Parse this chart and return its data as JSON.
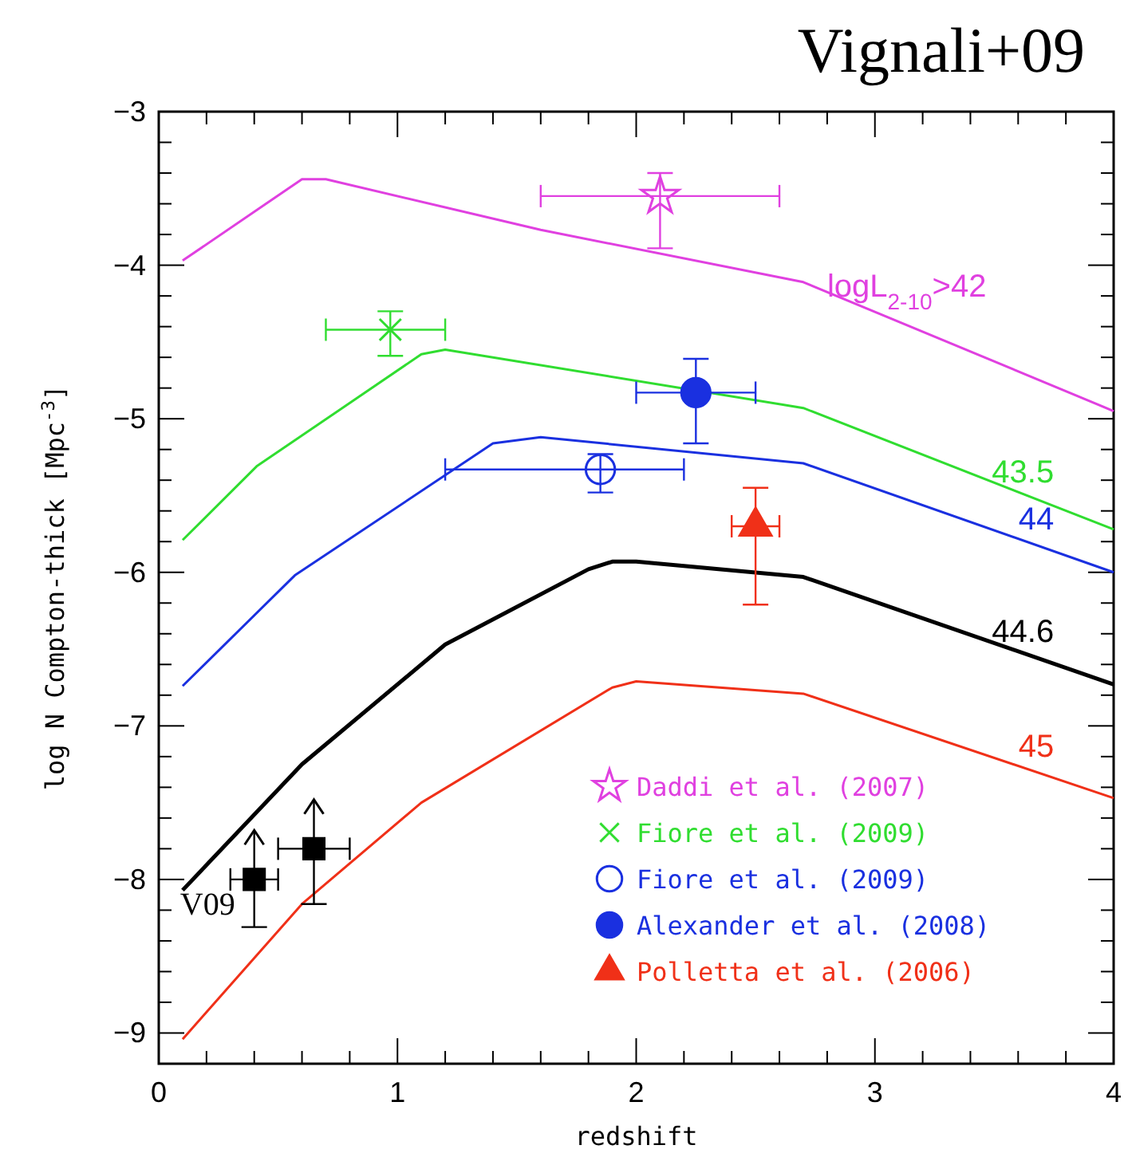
{
  "chart_data": {
    "type": "line",
    "title": "Vignali+09",
    "xlabel": "redshift",
    "ylabel": "log N Compton-thick [Mpc$^{-3}$]",
    "xlim": [
      0,
      4
    ],
    "ylim": [
      -9.2,
      -3
    ],
    "xticks": [
      0,
      {
        "value": 0.2,
        "label": null
      },
      {
        "value": 0.4,
        "label": null
      },
      {
        "value": 0.6,
        "label": null
      },
      {
        "value": 0.8,
        "label": null
      },
      1,
      {
        "value": 1.2,
        "label": null
      },
      {
        "value": 1.4,
        "label": null
      },
      {
        "value": 1.6,
        "label": null
      },
      {
        "value": 1.8,
        "label": null
      },
      2,
      {
        "value": 2.2,
        "label": null
      },
      {
        "value": 2.4,
        "label": null
      },
      {
        "value": 2.6,
        "label": null
      },
      {
        "value": 2.8,
        "label": null
      },
      3,
      {
        "value": 3.2,
        "label": null
      },
      {
        "value": 3.4,
        "label": null
      },
      {
        "value": 3.6,
        "label": null
      },
      {
        "value": 3.8,
        "label": null
      },
      4
    ],
    "yticks": [
      -9,
      {
        "value": -8.8,
        "label": null
      },
      {
        "value": -8.6,
        "label": null
      },
      {
        "value": -8.4,
        "label": null
      },
      {
        "value": -8.2,
        "label": null
      },
      -8,
      {
        "value": -7.8,
        "label": null
      },
      {
        "value": -7.6,
        "label": null
      },
      {
        "value": -7.4,
        "label": null
      },
      {
        "value": -7.2,
        "label": null
      },
      -7,
      {
        "value": -6.8,
        "label": null
      },
      {
        "value": -6.6,
        "label": null
      },
      {
        "value": -6.4,
        "label": null
      },
      {
        "value": -6.2,
        "label": null
      },
      -6,
      {
        "value": -5.8,
        "label": null
      },
      {
        "value": -5.6,
        "label": null
      },
      {
        "value": -5.4,
        "label": null
      },
      {
        "value": -5.2,
        "label": null
      },
      -5,
      {
        "value": -4.8,
        "label": null
      },
      {
        "value": -4.6,
        "label": null
      },
      {
        "value": -4.4,
        "label": null
      },
      {
        "value": -4.2,
        "label": null
      },
      -4,
      {
        "value": -3.8,
        "label": null
      },
      {
        "value": -3.6,
        "label": null
      },
      {
        "value": -3.4,
        "label": null
      },
      {
        "value": -3.2,
        "label": null
      },
      -3
    ],
    "legend": "bottom right",
    "series": [
      {
        "name": "logL$_{2-10}$>42",
        "color": "#e040e0",
        "x": [
          0.1,
          0.6,
          0.7,
          1.6,
          2.7,
          4
        ],
        "values": [
          -3.97,
          -3.44,
          -3.44,
          -3.77,
          -4.11,
          -4.95
        ]
      },
      {
        "name": "43.5",
        "color": "#30dd30",
        "x": [
          0.1,
          0.41,
          1.1,
          1.2,
          2.7,
          4
        ],
        "values": [
          -5.79,
          -5.31,
          -4.58,
          -4.55,
          -4.93,
          -5.72
        ]
      },
      {
        "name": "44",
        "color": "#1a30e0",
        "x": [
          0.1,
          0.57,
          1.4,
          1.6,
          2.7,
          4
        ],
        "values": [
          -6.74,
          -6.02,
          -5.16,
          -5.12,
          -5.29,
          -6.0
        ]
      },
      {
        "name": "44.6",
        "color": "#000000",
        "x": [
          0.1,
          0.6,
          1.2,
          1.8,
          1.9,
          2.0,
          2.7,
          4
        ],
        "values": [
          -8.07,
          -7.25,
          -6.47,
          -5.98,
          -5.93,
          -5.93,
          -6.03,
          -6.73
        ]
      },
      {
        "name": "45",
        "color": "#f03018",
        "x": [
          0.1,
          0.6,
          1.1,
          1.9,
          2.0,
          2.7,
          4
        ],
        "values": [
          -9.04,
          -8.16,
          -7.5,
          -6.75,
          -6.71,
          -6.79,
          -7.47
        ]
      },
      {
        "type": "scatter",
        "name": "V09",
        "color": "#000000",
        "marker": "square",
        "x": [
          0.4,
          0.65
        ],
        "values": [
          -8.0,
          -7.8
        ],
        "errors": [
          [
            -8.31,
            -7.68
          ],
          [
            -8.16,
            -7.48
          ]
        ],
        "xerrors": [
          [
            0.3,
            0.5
          ],
          [
            0.5,
            0.8
          ]
        ]
      },
      {
        "type": "scatter",
        "name": "Daddi et al. (2007)",
        "color": "#e040e0",
        "marker": "star",
        "x": [
          2.1
        ],
        "values": [
          -3.55
        ],
        "errors": [
          [
            -3.89,
            -3.4
          ]
        ],
        "xerrors": [
          [
            1.6,
            2.6
          ]
        ]
      },
      {
        "type": "scatter",
        "name": "Fiore et al. (2009)",
        "color": "#30dd30",
        "marker": "cross",
        "x": [
          0.97
        ],
        "values": [
          -4.42
        ],
        "errors": [
          [
            -4.59,
            -4.3
          ]
        ],
        "xerrors": [
          [
            0.7,
            1.2
          ]
        ]
      },
      {
        "type": "scatter",
        "name": "Fiore et al. (2009)",
        "color": "#1a30e0",
        "marker": "circle",
        "x": [
          1.85
        ],
        "values": [
          -5.33
        ],
        "errors": [
          [
            -5.48,
            -5.23
          ]
        ],
        "xerrors": [
          [
            1.2,
            2.2
          ]
        ]
      },
      {
        "type": "scatter",
        "name": "Alexander et al. (2008)",
        "color": "#1a30e0",
        "marker": "circle",
        "x": [
          2.25
        ],
        "values": [
          -4.83
        ],
        "errors": [
          [
            -5.16,
            -4.61
          ]
        ],
        "xerrors": [
          [
            2.0,
            2.5
          ]
        ]
      },
      {
        "type": "scatter",
        "name": "Polletta et al. (2006)",
        "color": "#f03018",
        "marker": "triangle",
        "x": [
          2.5
        ],
        "values": [
          -5.7
        ],
        "errors": [
          [
            -6.21,
            -5.45
          ]
        ],
        "xerrors": [
          [
            2.4,
            2.6
          ]
        ]
      }
    ]
  }
}
